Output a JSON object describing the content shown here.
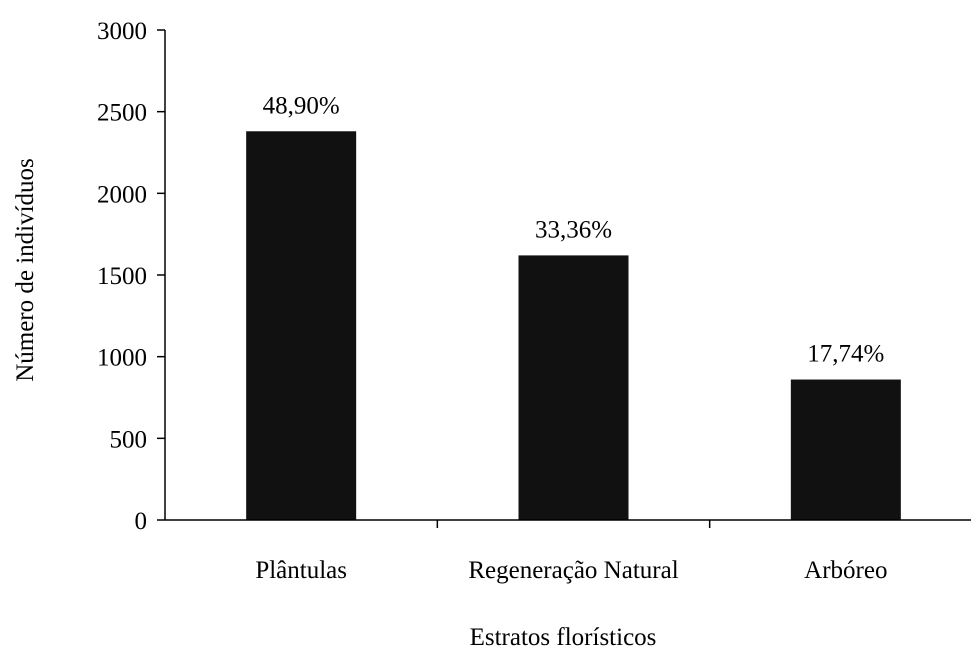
{
  "chart_data": {
    "type": "bar",
    "title": "",
    "xlabel": "Estratos florísticos",
    "ylabel": "Número de indivíduos",
    "categories": [
      "Plântulas",
      "Regeneração Natural",
      "Arbóreo"
    ],
    "values": [
      2380,
      1620,
      860
    ],
    "data_labels": [
      "48,90%",
      "33,36%",
      "17,74%"
    ],
    "ylim": [
      0,
      3000
    ],
    "yticks": [
      0,
      500,
      1000,
      1500,
      2000,
      2500,
      3000
    ],
    "ytick_labels": [
      "0",
      "500",
      "1000",
      "1500",
      "2000",
      "2500",
      "3000"
    ],
    "grid": false,
    "legend": "none",
    "bar_color": "#111111"
  }
}
